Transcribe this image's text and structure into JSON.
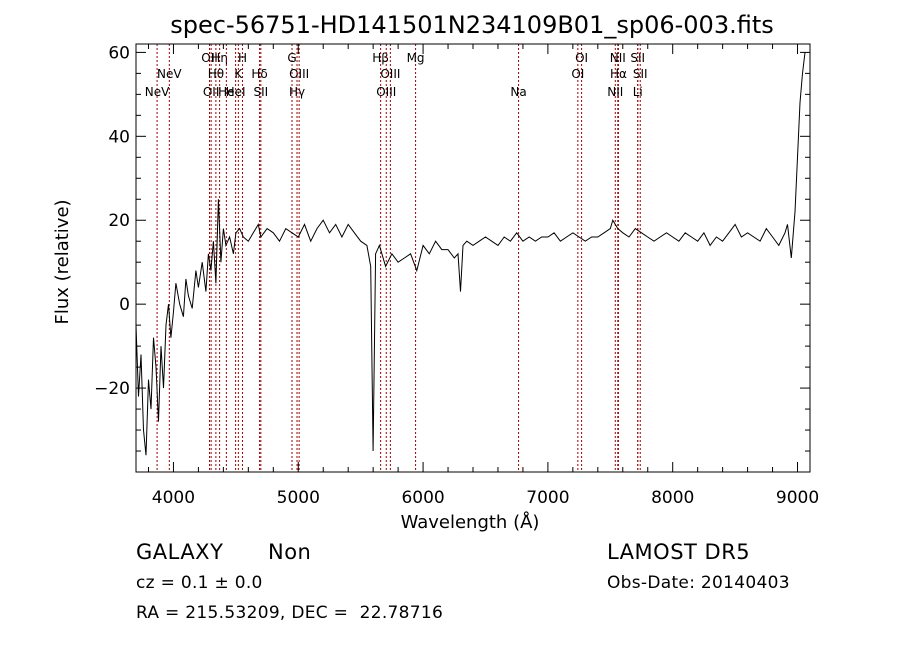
{
  "chart_data": {
    "type": "line",
    "title": "spec-56751-HD141501N234109B01_sp06-003.fits",
    "xlabel": "Wavelength (Å)",
    "ylabel": "Flux (relative)",
    "xlim": [
      3700,
      9100
    ],
    "ylim": [
      -40,
      62
    ],
    "x_ticks": [
      4000,
      5000,
      6000,
      7000,
      8000,
      9000
    ],
    "y_ticks": [
      -20,
      0,
      20,
      40,
      60
    ],
    "grid": false,
    "line_color": "#000000",
    "marker_color": "#a00000",
    "series": [
      {
        "x": [
          3700,
          3720,
          3740,
          3760,
          3780,
          3800,
          3820,
          3840,
          3860,
          3880,
          3900,
          3920,
          3940,
          3960,
          3980,
          4000,
          4020,
          4050,
          4080,
          4100,
          4120,
          4150,
          4180,
          4200,
          4230,
          4260,
          4280,
          4300,
          4320,
          4340,
          4360,
          4380,
          4400,
          4420,
          4450,
          4480,
          4500,
          4530,
          4560,
          4600,
          4640,
          4680,
          4700,
          4750,
          4800,
          4850,
          4900,
          4950,
          5000,
          5050,
          5100,
          5150,
          5200,
          5250,
          5300,
          5350,
          5400,
          5450,
          5500,
          5550,
          5580,
          5600,
          5620,
          5650,
          5700,
          5750,
          5800,
          5850,
          5900,
          5950,
          6000,
          6050,
          6100,
          6150,
          6200,
          6250,
          6280,
          6300,
          6320,
          6350,
          6400,
          6450,
          6500,
          6550,
          6600,
          6650,
          6700,
          6750,
          6800,
          6850,
          6900,
          6950,
          7000,
          7050,
          7100,
          7150,
          7200,
          7250,
          7300,
          7350,
          7400,
          7450,
          7500,
          7520,
          7560,
          7600,
          7650,
          7700,
          7750,
          7800,
          7850,
          7900,
          7950,
          8000,
          8050,
          8100,
          8150,
          8200,
          8250,
          8300,
          8350,
          8400,
          8450,
          8500,
          8550,
          8600,
          8650,
          8700,
          8750,
          8800,
          8850,
          8900,
          8920,
          8950,
          8980,
          9000,
          9020,
          9040,
          9060
        ],
        "y": [
          -5,
          -22,
          -12,
          -30,
          -36,
          -18,
          -25,
          -8,
          -15,
          -28,
          -10,
          -20,
          -5,
          0,
          -8,
          -2,
          5,
          0,
          -3,
          6,
          2,
          -1,
          8,
          4,
          10,
          3,
          12,
          8,
          15,
          5,
          25,
          10,
          18,
          14,
          16,
          12,
          17,
          18,
          16,
          15,
          17,
          19,
          16,
          18,
          17,
          15,
          18,
          17,
          16,
          19,
          15,
          18,
          20,
          17,
          19,
          16,
          19,
          17,
          15,
          14,
          9,
          -35,
          12,
          14,
          9,
          12,
          10,
          11,
          12,
          8,
          14,
          12,
          15,
          13,
          13,
          11,
          12,
          3,
          14,
          15,
          14,
          15,
          16,
          15,
          14,
          16,
          15,
          17,
          15,
          16,
          15,
          16,
          16,
          17,
          15,
          16,
          17,
          16,
          15,
          16,
          16,
          17,
          18,
          20,
          18,
          17,
          16,
          18,
          17,
          16,
          15,
          16,
          17,
          16,
          15,
          17,
          16,
          15,
          17,
          14,
          16,
          15,
          17,
          19,
          16,
          17,
          16,
          15,
          18,
          16,
          14,
          17,
          19,
          11,
          22,
          35,
          48,
          55,
          60
        ]
      }
    ],
    "markers": [
      {
        "name": "NeV",
        "x": 3869,
        "row": 2
      },
      {
        "name": "NeV",
        "x": 3967,
        "row": 1
      },
      {
        "name": "OII",
        "x": 4289,
        "row": 0
      },
      {
        "name": "OII",
        "x": 4302,
        "row": 2
      },
      {
        "name": "Hθ",
        "x": 4340,
        "row": 1
      },
      {
        "name": "Hη",
        "x": 4370,
        "row": 0
      },
      {
        "name": "He",
        "x": 4424,
        "row": 2
      },
      {
        "name": "K",
        "x": 4520,
        "row": 1
      },
      {
        "name": "H",
        "x": 4553,
        "row": 0
      },
      {
        "name": "HeI",
        "x": 4498,
        "row": 2
      },
      {
        "name": "Hδ",
        "x": 4690,
        "row": 1
      },
      {
        "name": "SII",
        "x": 4700,
        "row": 2
      },
      {
        "name": "G",
        "x": 4950,
        "row": 0
      },
      {
        "name": "OIII",
        "x": 5007,
        "row": 1
      },
      {
        "name": "Hγ",
        "x": 4990,
        "row": 2
      },
      {
        "name": "Hβ",
        "x": 5660,
        "row": 0
      },
      {
        "name": "OIII",
        "x": 5738,
        "row": 1
      },
      {
        "name": "OIII",
        "x": 5705,
        "row": 2
      },
      {
        "name": "Mg",
        "x": 5940,
        "row": 0
      },
      {
        "name": "Na",
        "x": 6765,
        "row": 2
      },
      {
        "name": "OI",
        "x": 7270,
        "row": 0
      },
      {
        "name": "OI",
        "x": 7240,
        "row": 1
      },
      {
        "name": "NII",
        "x": 7560,
        "row": 0
      },
      {
        "name": "Hα",
        "x": 7565,
        "row": 1
      },
      {
        "name": "NII",
        "x": 7540,
        "row": 2
      },
      {
        "name": "SII",
        "x": 7720,
        "row": 0
      },
      {
        "name": "SII",
        "x": 7740,
        "row": 1
      },
      {
        "name": "Li",
        "x": 7720,
        "row": 2
      }
    ]
  },
  "info": {
    "class": "GALAXY",
    "subclass": "Non",
    "survey": "LAMOST DR5",
    "cz": "cz = 0.1 ± 0.0",
    "obs_date": "Obs-Date: 20140403",
    "radec": "RA = 215.53209, DEC =  22.78716"
  }
}
